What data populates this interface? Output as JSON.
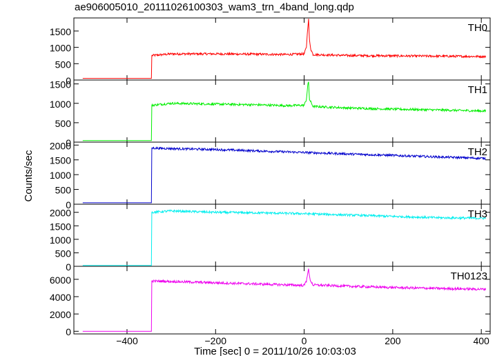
{
  "title": "ae906005010_20111026100303_wam3_trn_4band_long.qdp",
  "chart_data": {
    "type": "line",
    "title": "ae906005010_20111026100303_wam3_trn_4band_long.qdp",
    "xlabel": "Time [sec] 0 = 2011/10/26 10:03:03",
    "ylabel": "Counts/sec",
    "xlim": [
      -520,
      420
    ],
    "xticks": [
      -400,
      -200,
      0,
      200,
      400
    ],
    "xtick_labels": [
      "−400",
      "−200",
      "0",
      "200",
      "400"
    ],
    "grid": false,
    "panels": [
      {
        "name": "TH0",
        "color": "#ff0000",
        "ylim": [
          0,
          1900
        ],
        "yticks": [
          0,
          500,
          1000,
          1500
        ],
        "x": [
          -500,
          -345,
          -344,
          -300,
          -200,
          -100,
          -40,
          0,
          5,
          8,
          10,
          12,
          15,
          20,
          100,
          200,
          300,
          410
        ],
        "y": [
          50,
          50,
          750,
          800,
          800,
          790,
          780,
          800,
          1000,
          1600,
          1850,
          1200,
          950,
          780,
          750,
          740,
          730,
          720
        ]
      },
      {
        "name": "TH1",
        "color": "#00ee00",
        "ylim": [
          0,
          1600
        ],
        "yticks": [
          0,
          500,
          1000,
          1500
        ],
        "x": [
          -500,
          -345,
          -344,
          -300,
          -200,
          -100,
          -40,
          0,
          5,
          8,
          10,
          12,
          20,
          100,
          200,
          300,
          410
        ],
        "y": [
          40,
          40,
          950,
          1000,
          980,
          960,
          940,
          950,
          1100,
          1450,
          1550,
          1100,
          920,
          880,
          850,
          830,
          800
        ]
      },
      {
        "name": "TH2",
        "color": "#0000cc",
        "ylim": [
          0,
          2100
        ],
        "yticks": [
          0,
          500,
          1000,
          1500,
          2000
        ],
        "x": [
          -500,
          -345,
          -344,
          -300,
          -200,
          -100,
          0,
          100,
          200,
          300,
          410
        ],
        "y": [
          50,
          50,
          1900,
          1880,
          1850,
          1800,
          1750,
          1700,
          1650,
          1600,
          1550
        ]
      },
      {
        "name": "TH3",
        "color": "#00eeee",
        "ylim": [
          0,
          2300
        ],
        "yticks": [
          0,
          500,
          1000,
          1500,
          2000
        ],
        "x": [
          -500,
          -345,
          -344,
          -300,
          -200,
          -100,
          0,
          100,
          200,
          300,
          410
        ],
        "y": [
          30,
          30,
          2000,
          2050,
          2000,
          1980,
          1950,
          1900,
          1850,
          1800,
          1780
        ]
      },
      {
        "name": "TH0123",
        "color": "#ee00ee",
        "ylim": [
          -300,
          7500
        ],
        "yticks": [
          0,
          2000,
          4000,
          6000
        ],
        "x": [
          -500,
          -345,
          -344,
          -300,
          -200,
          -100,
          0,
          5,
          8,
          10,
          13,
          20,
          100,
          200,
          300,
          410
        ],
        "y": [
          0,
          0,
          5800,
          5750,
          5600,
          5450,
          5300,
          5800,
          6800,
          7100,
          6000,
          5350,
          5200,
          5050,
          4950,
          4850
        ]
      }
    ]
  }
}
